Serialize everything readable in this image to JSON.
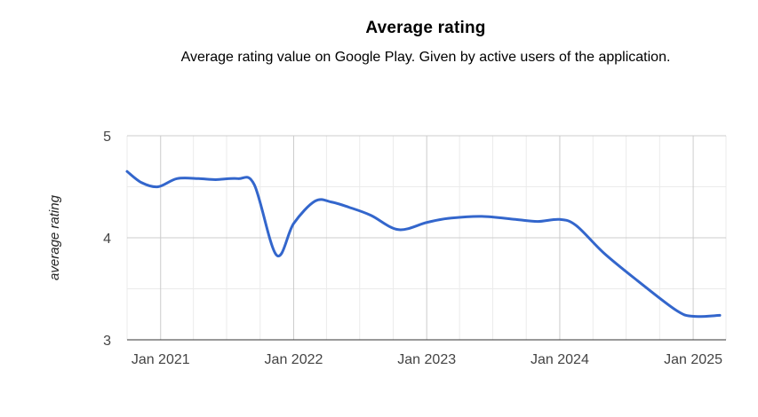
{
  "chart_data": {
    "type": "line",
    "title": "Average rating",
    "subtitle": "Average rating value on Google Play. Given by active users of the application.",
    "xlabel": "",
    "ylabel": "average rating",
    "ylim": [
      3,
      5
    ],
    "xlim": [
      "2020-10-01",
      "2025-04-01"
    ],
    "y_ticks": [
      3,
      4,
      5
    ],
    "y_minor_ticks": [
      3.5,
      4.5
    ],
    "x_ticks": [
      {
        "date": "2021-01-01",
        "label": "Jan 2021"
      },
      {
        "date": "2022-01-01",
        "label": "Jan 2022"
      },
      {
        "date": "2023-01-01",
        "label": "Jan 2023"
      },
      {
        "date": "2024-01-01",
        "label": "Jan 2024"
      },
      {
        "date": "2025-01-01",
        "label": "Jan 2025"
      }
    ],
    "grid": true,
    "series": [
      {
        "name": "",
        "color": "#3366cc",
        "points": [
          {
            "x": "2020-10-01",
            "y": 4.65
          },
          {
            "x": "2020-11-10",
            "y": 4.54
          },
          {
            "x": "2020-12-25",
            "y": 4.5
          },
          {
            "x": "2021-02-15",
            "y": 4.58
          },
          {
            "x": "2021-04-15",
            "y": 4.58
          },
          {
            "x": "2021-06-01",
            "y": 4.57
          },
          {
            "x": "2021-08-01",
            "y": 4.58
          },
          {
            "x": "2021-09-15",
            "y": 4.52
          },
          {
            "x": "2021-11-15",
            "y": 3.83
          },
          {
            "x": "2022-01-01",
            "y": 4.14
          },
          {
            "x": "2022-03-01",
            "y": 4.36
          },
          {
            "x": "2022-04-15",
            "y": 4.35
          },
          {
            "x": "2022-06-01",
            "y": 4.3
          },
          {
            "x": "2022-08-01",
            "y": 4.22
          },
          {
            "x": "2022-10-15",
            "y": 4.08
          },
          {
            "x": "2023-01-01",
            "y": 4.15
          },
          {
            "x": "2023-03-01",
            "y": 4.19
          },
          {
            "x": "2023-06-01",
            "y": 4.21
          },
          {
            "x": "2023-09-01",
            "y": 4.18
          },
          {
            "x": "2023-11-01",
            "y": 4.16
          },
          {
            "x": "2024-01-01",
            "y": 4.18
          },
          {
            "x": "2024-02-15",
            "y": 4.12
          },
          {
            "x": "2024-05-01",
            "y": 3.85
          },
          {
            "x": "2024-08-01",
            "y": 3.58
          },
          {
            "x": "2024-11-15",
            "y": 3.29
          },
          {
            "x": "2025-01-01",
            "y": 3.23
          },
          {
            "x": "2025-03-15",
            "y": 3.24
          }
        ]
      }
    ]
  }
}
